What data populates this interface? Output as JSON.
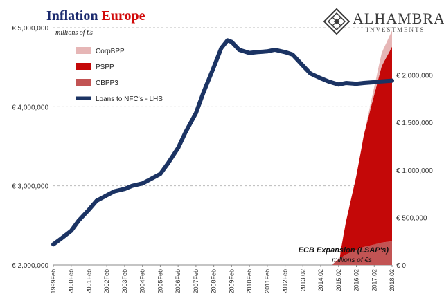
{
  "header": {
    "title_part1": "Inflation",
    "title_part2": "Europe",
    "units_note": "millions of €s"
  },
  "logo": {
    "name": "ALHAMBRA",
    "tagline": "INVESTMENTS",
    "icon": "diamond-lattice-icon"
  },
  "colors": {
    "loans": "#1b3363",
    "corpbpp": "#e6b6b6",
    "pspp": "#c40808",
    "cbpp3": "#c25454",
    "title_blue": "#1b2a6e",
    "title_red": "#d10a0a"
  },
  "chart_data": {
    "type": "line",
    "title": "Inflation Europe",
    "left_axis": {
      "ylim": [
        2000000,
        5000000
      ],
      "ticks": [
        2000000,
        3000000,
        4000000,
        5000000
      ],
      "tick_labels": [
        "€ 2,000,000",
        "€ 3,000,000",
        "€ 4,000,000",
        "€ 5,000,000"
      ]
    },
    "right_axis": {
      "ylim": [
        0,
        2500000
      ],
      "ticks": [
        0,
        500000,
        1000000,
        1500000,
        2000000
      ],
      "tick_labels": [
        "€ 0",
        "€ 500,000",
        "€ 1,000,000",
        "€ 1,500,000",
        "€ 2,000,000"
      ]
    },
    "x_axis": {
      "range": [
        "1999-02",
        "2018-02"
      ],
      "tick_labels": [
        "1999Feb",
        "2000Feb",
        "2001Feb",
        "2002Feb",
        "2003Feb",
        "2004Feb",
        "2005Feb",
        "2006Feb",
        "2007Feb",
        "2008Feb",
        "2009Feb",
        "2010Feb",
        "2011Feb",
        "2012Feb",
        "2013.02",
        "2014.02",
        "2015.02",
        "2016.02",
        "2017.02",
        "2018.02"
      ]
    },
    "legend": {
      "placement": "top-left",
      "entries": [
        "CorpBPP",
        "PSPP",
        "CBPP3",
        "Loans to NFC's - LHS"
      ]
    },
    "annotations": {
      "line1": "ECB Expansion (LSAP's)",
      "line2": "millions of €s"
    },
    "series": [
      {
        "name": "Loans to NFC's - LHS",
        "axis": "left",
        "type": "line",
        "x": [
          1999.08,
          1999.5,
          2000.08,
          2000.5,
          2001.08,
          2001.5,
          2002.08,
          2002.5,
          2003.08,
          2003.5,
          2004.08,
          2004.5,
          2005.08,
          2005.5,
          2006.08,
          2006.5,
          2007.08,
          2007.5,
          2008.08,
          2008.5,
          2008.85,
          2009.08,
          2009.5,
          2010.08,
          2010.5,
          2011.08,
          2011.5,
          2012.08,
          2012.5,
          2013.08,
          2013.5,
          2014.08,
          2014.5,
          2015.08,
          2015.5,
          2016.08,
          2016.5,
          2017.08,
          2017.5,
          2018.08
        ],
        "values": [
          2260000,
          2330000,
          2430000,
          2560000,
          2700000,
          2810000,
          2880000,
          2930000,
          2960000,
          3000000,
          3030000,
          3080000,
          3150000,
          3280000,
          3480000,
          3680000,
          3920000,
          4180000,
          4500000,
          4740000,
          4840000,
          4820000,
          4720000,
          4680000,
          4690000,
          4700000,
          4720000,
          4690000,
          4660000,
          4520000,
          4420000,
          4360000,
          4320000,
          4280000,
          4300000,
          4290000,
          4300000,
          4310000,
          4320000,
          4330000
        ]
      },
      {
        "name": "CBPP3",
        "axis": "right",
        "type": "area",
        "x": [
          2014.75,
          2015.08,
          2015.5,
          2016.08,
          2016.5,
          2017.08,
          2017.5,
          2018.08
        ],
        "values": [
          10000,
          60000,
          110000,
          160000,
          190000,
          215000,
          235000,
          250000
        ]
      },
      {
        "name": "PSPP",
        "axis": "right",
        "type": "area",
        "x": [
          2015.17,
          2015.5,
          2016.08,
          2016.5,
          2017.08,
          2017.5,
          2018.08
        ],
        "values": [
          50000,
          350000,
          780000,
          1180000,
          1580000,
          1860000,
          2050000
        ]
      },
      {
        "name": "CorpBPP",
        "axis": "right",
        "type": "area",
        "x": [
          2016.5,
          2017.08,
          2017.5,
          2018.08
        ],
        "values": [
          0,
          80000,
          140000,
          170000
        ]
      }
    ]
  }
}
